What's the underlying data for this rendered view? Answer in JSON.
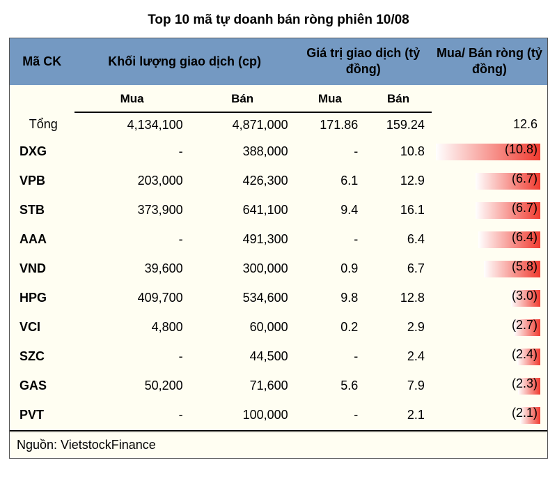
{
  "title": "Top 10 mã tự doanh bán ròng phiên 10/08",
  "headers": {
    "code": "Mã CK",
    "volume": "Khối lượng giao dịch (cp)",
    "value": "Giá trị giao dịch (tỷ đồng)",
    "net": "Mua/ Bán ròng (tỷ đồng)",
    "buy": "Mua",
    "sell": "Bán"
  },
  "total": {
    "label": "Tổng",
    "vol_buy": "4,134,100",
    "vol_sell": "4,871,000",
    "val_buy": "171.86",
    "val_sell": "159.24",
    "net": "12.6"
  },
  "rows": [
    {
      "code": "DXG",
      "vol_buy": "-",
      "vol_sell": "388,000",
      "val_buy": "-",
      "val_sell": "10.8",
      "net": "(10.8)",
      "bar_pct": 100
    },
    {
      "code": "VPB",
      "vol_buy": "203,000",
      "vol_sell": "426,300",
      "val_buy": "6.1",
      "val_sell": "12.9",
      "net": "(6.7)",
      "bar_pct": 62
    },
    {
      "code": "STB",
      "vol_buy": "373,900",
      "vol_sell": "641,100",
      "val_buy": "9.4",
      "val_sell": "16.1",
      "net": "(6.7)",
      "bar_pct": 62
    },
    {
      "code": "AAA",
      "vol_buy": "-",
      "vol_sell": "491,300",
      "val_buy": "-",
      "val_sell": "6.4",
      "net": "(6.4)",
      "bar_pct": 59
    },
    {
      "code": "VND",
      "vol_buy": "39,600",
      "vol_sell": "300,000",
      "val_buy": "0.9",
      "val_sell": "6.7",
      "net": "(5.8)",
      "bar_pct": 54
    },
    {
      "code": "HPG",
      "vol_buy": "409,700",
      "vol_sell": "534,600",
      "val_buy": "9.8",
      "val_sell": "12.8",
      "net": "(3.0)",
      "bar_pct": 28
    },
    {
      "code": "VCI",
      "vol_buy": "4,800",
      "vol_sell": "60,000",
      "val_buy": "0.2",
      "val_sell": "2.9",
      "net": "(2.7)",
      "bar_pct": 25
    },
    {
      "code": "SZC",
      "vol_buy": "-",
      "vol_sell": "44,500",
      "val_buy": "-",
      "val_sell": "2.4",
      "net": "(2.4)",
      "bar_pct": 22
    },
    {
      "code": "GAS",
      "vol_buy": "50,200",
      "vol_sell": "71,600",
      "val_buy": "5.6",
      "val_sell": "7.9",
      "net": "(2.3)",
      "bar_pct": 21
    },
    {
      "code": "PVT",
      "vol_buy": "-",
      "vol_sell": "100,000",
      "val_buy": "-",
      "val_sell": "2.1",
      "net": "(2.1)",
      "bar_pct": 19
    }
  ],
  "source": "Nguồn: VietstockFinance",
  "style": {
    "header_bg": "#7499c2",
    "body_bg": "#fffef2",
    "bar_gradient_from": "#ffffff",
    "bar_gradient_to": "#f03a2f",
    "title_fontsize": 19,
    "header_fontsize": 18,
    "cell_fontsize": 18
  }
}
